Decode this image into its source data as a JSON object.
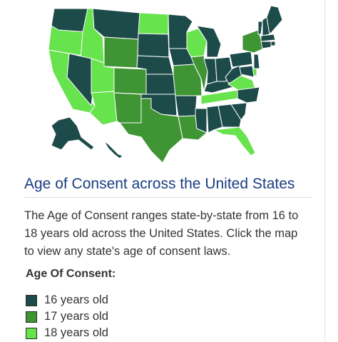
{
  "map": {
    "title": "Age of Consent across the United States",
    "description": "The Age of Consent ranges state-by-state from 16 to 18 years old across the United States. Click the map to view any state's age of consent laws.",
    "legend_title": "Age Of Consent:",
    "legend": [
      {
        "label": "16 years old",
        "color": "#1d4b4a"
      },
      {
        "label": "17 years old",
        "color": "#3f9434"
      },
      {
        "label": "18 years old",
        "color": "#66e34d"
      }
    ],
    "states": {
      "WA": 16,
      "OR": 18,
      "CA": 18,
      "ID": 18,
      "NV": 16,
      "MT": 16,
      "WY": 17,
      "UT": 18,
      "AZ": 18,
      "CO": 17,
      "NM": 17,
      "ND": 18,
      "SD": 16,
      "NE": 16,
      "KS": 16,
      "OK": 16,
      "TX": 17,
      "MN": 16,
      "IA": 16,
      "MO": 17,
      "AR": 16,
      "LA": 17,
      "WI": 18,
      "IL": 17,
      "MS": 16,
      "MI": 16,
      "IN": 16,
      "KY": 16,
      "TN": 18,
      "AL": 16,
      "OH": 16,
      "GA": 16,
      "FL": 18,
      "WV": 16,
      "VA": 18,
      "NC": 16,
      "SC": 16,
      "PA": 16,
      "NY": 17,
      "VT": 16,
      "NH": 16,
      "ME": 16,
      "MA": 16,
      "RI": 16,
      "CT": 16,
      "NJ": 16,
      "DE": 18,
      "MD": 16,
      "AK": 16,
      "HI": 16
    }
  }
}
